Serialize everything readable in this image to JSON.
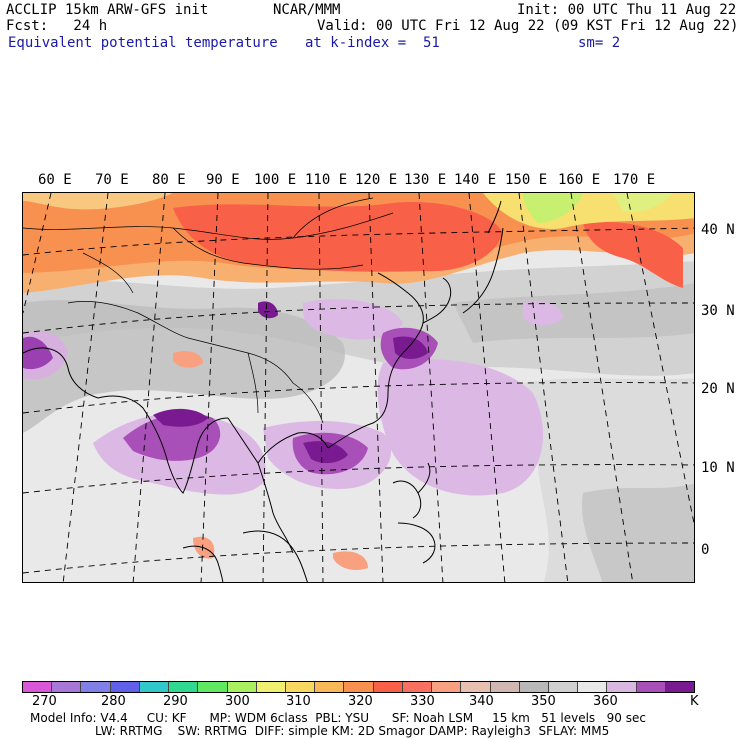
{
  "header": {
    "model": "ACCLIP 15km ARW-GFS init",
    "org": "NCAR/MMM",
    "init": "Init: 00 UTC Thu 11 Aug 22",
    "fcst": "Fcst:   24 h",
    "valid": "Valid: 00 UTC Fri 12 Aug 22 (09 KST Fri 12 Aug 22)",
    "field": "Equivalent potential temperature",
    "level": "at k-index =  51",
    "smooth": "sm= 2"
  },
  "map": {
    "lon_labels": [
      "60 E",
      "70 E",
      "80 E",
      "90 E",
      "100 E",
      "110 E",
      "120 E",
      "130 E",
      "140 E",
      "150 E",
      "160 E",
      "170 E"
    ],
    "lat_labels": [
      "40 N",
      "30 N",
      "20 N",
      "10 N",
      "0"
    ]
  },
  "colorbar": {
    "labels": [
      "270",
      "280",
      "290",
      "300",
      "310",
      "320",
      "330",
      "340",
      "350",
      "360"
    ],
    "unit": "K",
    "colors": [
      "#d957d9",
      "#a878d8",
      "#8080e8",
      "#6060e8",
      "#30c8c8",
      "#30d890",
      "#60e860",
      "#a8f060",
      "#f0f070",
      "#f8d860",
      "#f8b858",
      "#f89050",
      "#f86048",
      "#f87060",
      "#f8a080",
      "#e8c0b0",
      "#d0b8b0",
      "#b8b8b8",
      "#d0d0d0",
      "#e8e8e8",
      "#d8b8e0",
      "#a850b8",
      "#7a1a90"
    ]
  },
  "footer": {
    "line1": "Model Info: V4.4     CU: KF      MP: WDM 6class  PBL: YSU      SF: Noah LSM     15 km   51 levels   90 sec",
    "line2": "LW: RRTMG    SW: RRTMG  DIFF: simple KM: 2D Smagor DAMP: Rayleigh3  SFLAY: MM5"
  }
}
